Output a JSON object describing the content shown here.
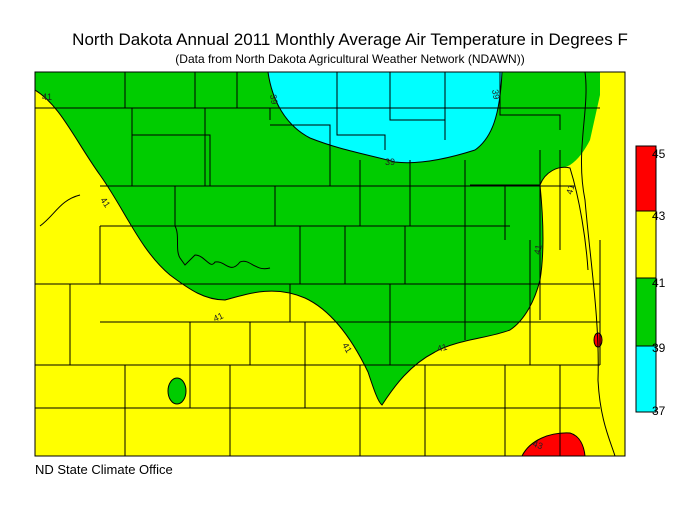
{
  "title": "North Dakota Annual 2011 Monthly Average Air Temperature in Degrees F",
  "subtitle": "(Data from North Dakota Agricultural Weather Network (NDAWN))",
  "credit": "ND State Climate Office",
  "legend": {
    "bins": [
      {
        "from": 43,
        "to": 45,
        "color": "#ff0000"
      },
      {
        "from": 41,
        "to": 43,
        "color": "#ffff00"
      },
      {
        "from": 39,
        "to": 41,
        "color": "#00cc00"
      },
      {
        "from": 37,
        "to": 39,
        "color": "#00ffff"
      }
    ],
    "tick_labels": [
      "45",
      "43",
      "41",
      "39",
      "37"
    ]
  },
  "contour_labels": [
    "41",
    "39",
    "39",
    "39",
    "41",
    "41",
    "41",
    "41",
    "41",
    "41",
    "43"
  ],
  "colors": {
    "yellow": "#ffff00",
    "green": "#00cc00",
    "cyan": "#00ffff",
    "red": "#ff0000"
  }
}
